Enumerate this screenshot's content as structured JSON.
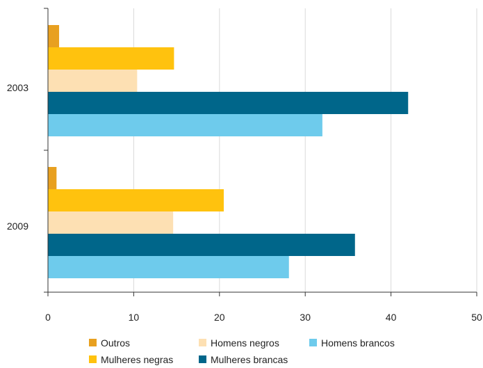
{
  "chart_data": {
    "type": "bar",
    "orientation": "horizontal",
    "categories": [
      "2003",
      "2009"
    ],
    "series": [
      {
        "name": "Outros",
        "color": "#e8a020",
        "values": [
          1.3,
          1.0
        ]
      },
      {
        "name": "Mulheres negras",
        "color": "#ffc20e",
        "values": [
          14.7,
          20.5
        ]
      },
      {
        "name": "Homens negros",
        "color": "#fde0b3",
        "values": [
          10.4,
          14.6
        ]
      },
      {
        "name": "Mulheres brancas",
        "color": "#00668a",
        "values": [
          42.0,
          35.8
        ]
      },
      {
        "name": "Homens brancos",
        "color": "#6ecbec",
        "values": [
          32.0,
          28.1
        ]
      }
    ],
    "xlim": [
      0,
      50
    ],
    "xticks": [
      "0",
      "10",
      "20",
      "30",
      "40",
      "50"
    ],
    "grid": "vertical",
    "legend_position": "bottom",
    "title": "",
    "xlabel": "",
    "ylabel": ""
  }
}
